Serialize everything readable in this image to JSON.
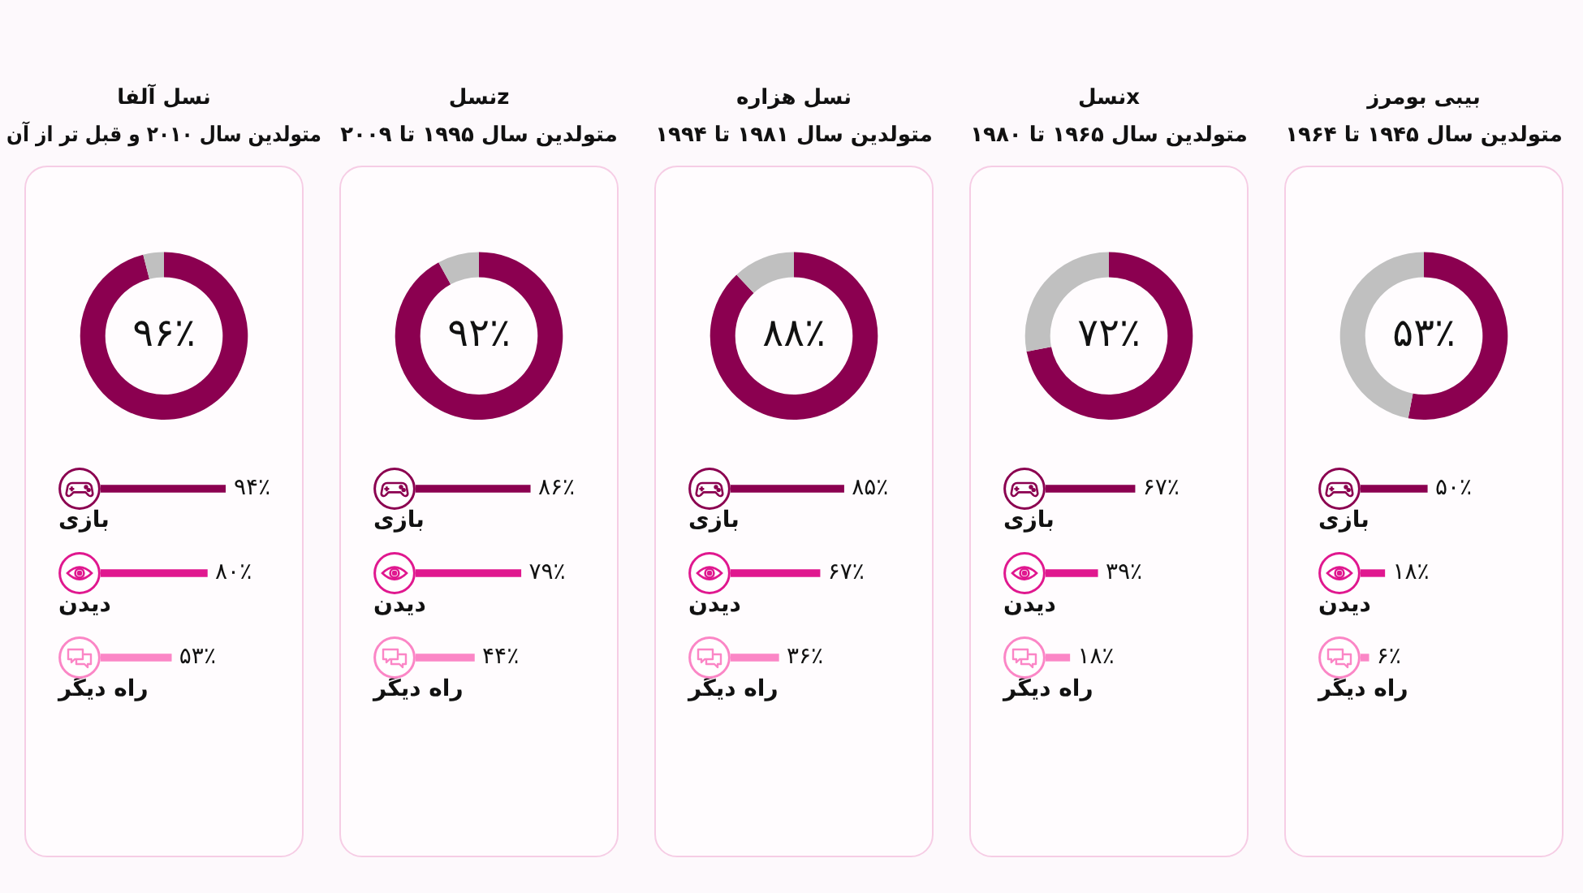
{
  "chart_data": [
    {
      "type": "donut",
      "title": "بیبی بومرز",
      "subtitle": "متولدین سال ۱۹۴۵ تا ۱۹۶۴",
      "categories": [
        null,
        null
      ],
      "values": [
        53,
        47
      ],
      "colors": [
        "#8b0050",
        "#c0c0c0"
      ],
      "value_labels": [
        "۵۳٪",
        null
      ]
    },
    {
      "type": "bar",
      "orientation": "horizontal",
      "categories": [
        "بازی",
        "دیدن",
        "راه دیگر"
      ],
      "values": [
        50,
        18,
        6
      ],
      "colors": [
        "#8b0050",
        "#e0188f",
        "#fb86c6"
      ],
      "value_labels": [
        "۵۰٪",
        "۱۸٪",
        "۶٪"
      ],
      "tick_labels": "y"
    },
    {
      "type": "donut",
      "title": "نسلx",
      "subtitle": "متولدین سال ۱۹۶۵ تا ۱۹۸۰",
      "categories": [
        null,
        null
      ],
      "values": [
        72,
        28
      ],
      "colors": [
        "#8b0050",
        "#c0c0c0"
      ],
      "value_labels": [
        "۷۲٪",
        null
      ]
    },
    {
      "type": "bar",
      "orientation": "horizontal",
      "categories": [
        "بازی",
        "دیدن",
        "راه دیگر"
      ],
      "values": [
        67,
        39,
        18
      ],
      "colors": [
        "#8b0050",
        "#e0188f",
        "#fb86c6"
      ],
      "value_labels": [
        "۶۷٪",
        "۳۹٪",
        "۱۸٪"
      ],
      "tick_labels": "y"
    },
    {
      "type": "donut",
      "title": "نسل هزاره",
      "subtitle": "متولدین سال ۱۹۸۱ تا ۱۹۹۴",
      "categories": [
        null,
        null
      ],
      "values": [
        88,
        12
      ],
      "colors": [
        "#8b0050",
        "#c0c0c0"
      ],
      "value_labels": [
        "۸۸٪",
        null
      ]
    },
    {
      "type": "bar",
      "orientation": "horizontal",
      "categories": [
        "بازی",
        "دیدن",
        "راه دیگر"
      ],
      "values": [
        85,
        67,
        36
      ],
      "colors": [
        "#8b0050",
        "#e0188f",
        "#fb86c6"
      ],
      "value_labels": [
        "۸۵٪",
        "۶۷٪",
        "۳۶٪"
      ],
      "tick_labels": "y"
    },
    {
      "type": "donut",
      "title": "نسلz",
      "subtitle": "متولدین سال ۱۹۹۵ تا ۲۰۰۹",
      "categories": [
        null,
        null
      ],
      "values": [
        92,
        8
      ],
      "colors": [
        "#8b0050",
        "#c0c0c0"
      ],
      "value_labels": [
        "۹۲٪",
        null
      ]
    },
    {
      "type": "bar",
      "orientation": "horizontal",
      "categories": [
        "بازی",
        "دیدن",
        "راه دیگر"
      ],
      "values": [
        86,
        79,
        44
      ],
      "colors": [
        "#8b0050",
        "#e0188f",
        "#fb86c6"
      ],
      "value_labels": [
        "۸۶٪",
        "۷۹٪",
        "۴۴٪"
      ],
      "tick_labels": "y"
    },
    {
      "type": "donut",
      "title": "نسل آلفا",
      "subtitle": "متولدین سال ۲۰۱۰ و قبل تر از آن",
      "categories": [
        null,
        null
      ],
      "values": [
        96,
        4
      ],
      "colors": [
        "#8b0050",
        "#c0c0c0"
      ],
      "value_labels": [
        "۹۶٪",
        null
      ]
    },
    {
      "type": "bar",
      "orientation": "horizontal",
      "categories": [
        "بازی",
        "دیدن",
        "راه دیگر"
      ],
      "values": [
        94,
        80,
        53
      ],
      "colors": [
        "#8b0050",
        "#e0188f",
        "#fb86c6"
      ],
      "value_labels": [
        "۹۴٪",
        "۸۰٪",
        "۵۳٪"
      ],
      "tick_labels": "y"
    }
  ]
}
